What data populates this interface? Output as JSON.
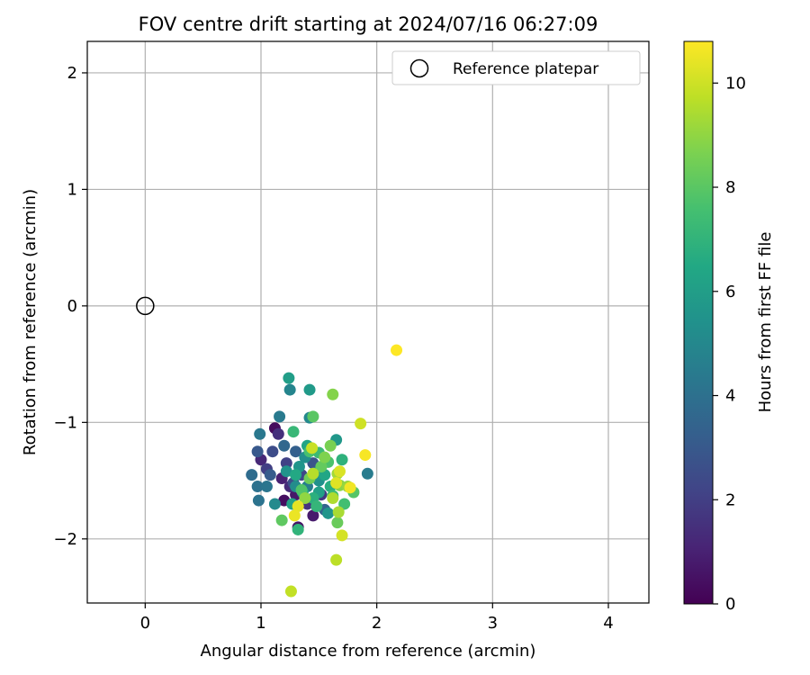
{
  "chart_data": {
    "type": "scatter",
    "title": "FOV centre drift starting at 2024/07/16 06:27:09",
    "xlabel": "Angular distance from reference (arcmin)",
    "ylabel": "Rotation from reference (arcmin)",
    "xlim": [
      -0.5,
      4.35
    ],
    "ylim": [
      -2.55,
      2.27
    ],
    "xticks": [
      0,
      1,
      2,
      3,
      4
    ],
    "yticks": [
      -2,
      -1,
      0,
      1,
      2
    ],
    "xtick_labels": [
      "0",
      "1",
      "2",
      "3",
      "4"
    ],
    "ytick_labels": [
      "−2",
      "−1",
      "0",
      "1",
      "2"
    ],
    "grid": true,
    "legend": {
      "placement": "top-right",
      "entries": [
        {
          "label": "Reference platepar",
          "marker": "open-circle"
        }
      ]
    },
    "reference_point": {
      "x": 0,
      "y": 0
    },
    "colorbar": {
      "label": "Hours from first FF file",
      "min": 0,
      "max": 10.8,
      "ticks": [
        0,
        2,
        4,
        6,
        8,
        10
      ],
      "tick_labels": [
        "0",
        "2",
        "4",
        "6",
        "8",
        "10"
      ],
      "colormap": "viridis"
    },
    "series": [
      {
        "points": [
          {
            "x": 1.12,
            "y": -1.05,
            "h": 0.3
          },
          {
            "x": 1.2,
            "y": -1.67,
            "h": 0.4
          },
          {
            "x": 1.32,
            "y": -1.9,
            "h": 0.6
          },
          {
            "x": 1.45,
            "y": -1.8,
            "h": 0.8
          },
          {
            "x": 1.3,
            "y": -1.62,
            "h": 0.7
          },
          {
            "x": 1.18,
            "y": -1.48,
            "h": 1.0
          },
          {
            "x": 1.0,
            "y": -1.32,
            "h": 1.2
          },
          {
            "x": 1.25,
            "y": -1.55,
            "h": 1.3
          },
          {
            "x": 1.15,
            "y": -1.1,
            "h": 1.5
          },
          {
            "x": 1.4,
            "y": -1.7,
            "h": 1.6
          },
          {
            "x": 1.52,
            "y": -1.62,
            "h": 1.8
          },
          {
            "x": 1.05,
            "y": -1.4,
            "h": 2.0
          },
          {
            "x": 1.22,
            "y": -1.35,
            "h": 2.1
          },
          {
            "x": 1.35,
            "y": -1.45,
            "h": 2.3
          },
          {
            "x": 1.1,
            "y": -1.25,
            "h": 2.5
          },
          {
            "x": 1.28,
            "y": -1.52,
            "h": 2.6
          },
          {
            "x": 1.45,
            "y": -1.35,
            "h": 2.8
          },
          {
            "x": 0.97,
            "y": -1.25,
            "h": 3.0
          },
          {
            "x": 1.08,
            "y": -1.45,
            "h": 3.1
          },
          {
            "x": 1.3,
            "y": -1.25,
            "h": 3.3
          },
          {
            "x": 1.55,
            "y": -1.75,
            "h": 3.5
          },
          {
            "x": 1.2,
            "y": -1.2,
            "h": 3.6
          },
          {
            "x": 0.92,
            "y": -1.45,
            "h": 3.8
          },
          {
            "x": 0.97,
            "y": -1.55,
            "h": 4.0
          },
          {
            "x": 0.98,
            "y": -1.67,
            "h": 4.1
          },
          {
            "x": 1.05,
            "y": -1.55,
            "h": 4.2
          },
          {
            "x": 0.99,
            "y": -1.1,
            "h": 4.3
          },
          {
            "x": 1.16,
            "y": -0.95,
            "h": 4.4
          },
          {
            "x": 1.92,
            "y": -1.44,
            "h": 4.5
          },
          {
            "x": 1.4,
            "y": -1.55,
            "h": 4.6
          },
          {
            "x": 1.48,
            "y": -1.43,
            "h": 4.7
          },
          {
            "x": 1.25,
            "y": -0.72,
            "h": 4.9
          },
          {
            "x": 1.42,
            "y": -0.96,
            "h": 5.0
          },
          {
            "x": 1.12,
            "y": -1.7,
            "h": 5.1
          },
          {
            "x": 1.3,
            "y": -1.55,
            "h": 5.2
          },
          {
            "x": 1.38,
            "y": -1.3,
            "h": 5.3
          },
          {
            "x": 1.5,
            "y": -1.5,
            "h": 5.4
          },
          {
            "x": 1.22,
            "y": -1.42,
            "h": 5.5
          },
          {
            "x": 1.33,
            "y": -1.38,
            "h": 5.6
          },
          {
            "x": 1.58,
            "y": -1.78,
            "h": 5.6
          },
          {
            "x": 1.65,
            "y": -1.15,
            "h": 5.7
          },
          {
            "x": 1.42,
            "y": -0.72,
            "h": 5.8
          },
          {
            "x": 1.24,
            "y": -0.62,
            "h": 6.0
          },
          {
            "x": 1.5,
            "y": -1.6,
            "h": 6.1
          },
          {
            "x": 1.27,
            "y": -1.7,
            "h": 6.2
          },
          {
            "x": 1.4,
            "y": -1.2,
            "h": 6.3
          },
          {
            "x": 1.55,
            "y": -1.45,
            "h": 6.4
          },
          {
            "x": 1.3,
            "y": -1.45,
            "h": 6.5
          },
          {
            "x": 1.36,
            "y": -1.6,
            "h": 6.6
          },
          {
            "x": 1.6,
            "y": -1.55,
            "h": 6.7
          },
          {
            "x": 1.45,
            "y": -1.65,
            "h": 6.8
          },
          {
            "x": 1.7,
            "y": -1.32,
            "h": 6.9
          },
          {
            "x": 1.32,
            "y": -1.92,
            "h": 7.0
          },
          {
            "x": 1.48,
            "y": -1.72,
            "h": 7.1
          },
          {
            "x": 1.28,
            "y": -1.08,
            "h": 7.2
          },
          {
            "x": 1.5,
            "y": -1.26,
            "h": 7.3
          },
          {
            "x": 1.62,
            "y": -1.63,
            "h": 7.4
          },
          {
            "x": 1.72,
            "y": -1.7,
            "h": 7.5
          },
          {
            "x": 1.42,
            "y": -1.25,
            "h": 7.6
          },
          {
            "x": 1.58,
            "y": -1.34,
            "h": 7.7
          },
          {
            "x": 1.35,
            "y": -1.58,
            "h": 7.8
          },
          {
            "x": 1.8,
            "y": -1.6,
            "h": 7.9
          },
          {
            "x": 1.45,
            "y": -0.95,
            "h": 8.0
          },
          {
            "x": 1.18,
            "y": -1.84,
            "h": 8.1
          },
          {
            "x": 1.52,
            "y": -1.38,
            "h": 8.2
          },
          {
            "x": 1.66,
            "y": -1.86,
            "h": 8.3
          },
          {
            "x": 1.42,
            "y": -1.48,
            "h": 8.4
          },
          {
            "x": 1.6,
            "y": -1.2,
            "h": 8.6
          },
          {
            "x": 1.55,
            "y": -1.3,
            "h": 8.7
          },
          {
            "x": 1.62,
            "y": -0.76,
            "h": 8.8
          },
          {
            "x": 1.68,
            "y": -1.54,
            "h": 8.9
          },
          {
            "x": 1.38,
            "y": -1.65,
            "h": 9.0
          },
          {
            "x": 1.75,
            "y": -1.55,
            "h": 9.1
          },
          {
            "x": 1.66,
            "y": -1.44,
            "h": 9.3
          },
          {
            "x": 1.67,
            "y": -1.77,
            "h": 9.4
          },
          {
            "x": 1.62,
            "y": -1.65,
            "h": 9.5
          },
          {
            "x": 1.45,
            "y": -1.44,
            "h": 9.6
          },
          {
            "x": 1.65,
            "y": -2.18,
            "h": 9.7
          },
          {
            "x": 1.26,
            "y": -2.45,
            "h": 9.8
          },
          {
            "x": 1.44,
            "y": -1.22,
            "h": 9.9
          },
          {
            "x": 1.86,
            "y": -1.01,
            "h": 10.0
          },
          {
            "x": 1.7,
            "y": -1.97,
            "h": 10.1
          },
          {
            "x": 1.68,
            "y": -1.42,
            "h": 10.2
          },
          {
            "x": 1.65,
            "y": -1.52,
            "h": 10.3
          },
          {
            "x": 1.32,
            "y": -1.72,
            "h": 10.4
          },
          {
            "x": 1.29,
            "y": -1.8,
            "h": 10.5
          },
          {
            "x": 1.77,
            "y": -1.56,
            "h": 10.6
          },
          {
            "x": 1.9,
            "y": -1.28,
            "h": 10.7
          },
          {
            "x": 2.17,
            "y": -0.38,
            "h": 10.8
          }
        ]
      }
    ]
  }
}
